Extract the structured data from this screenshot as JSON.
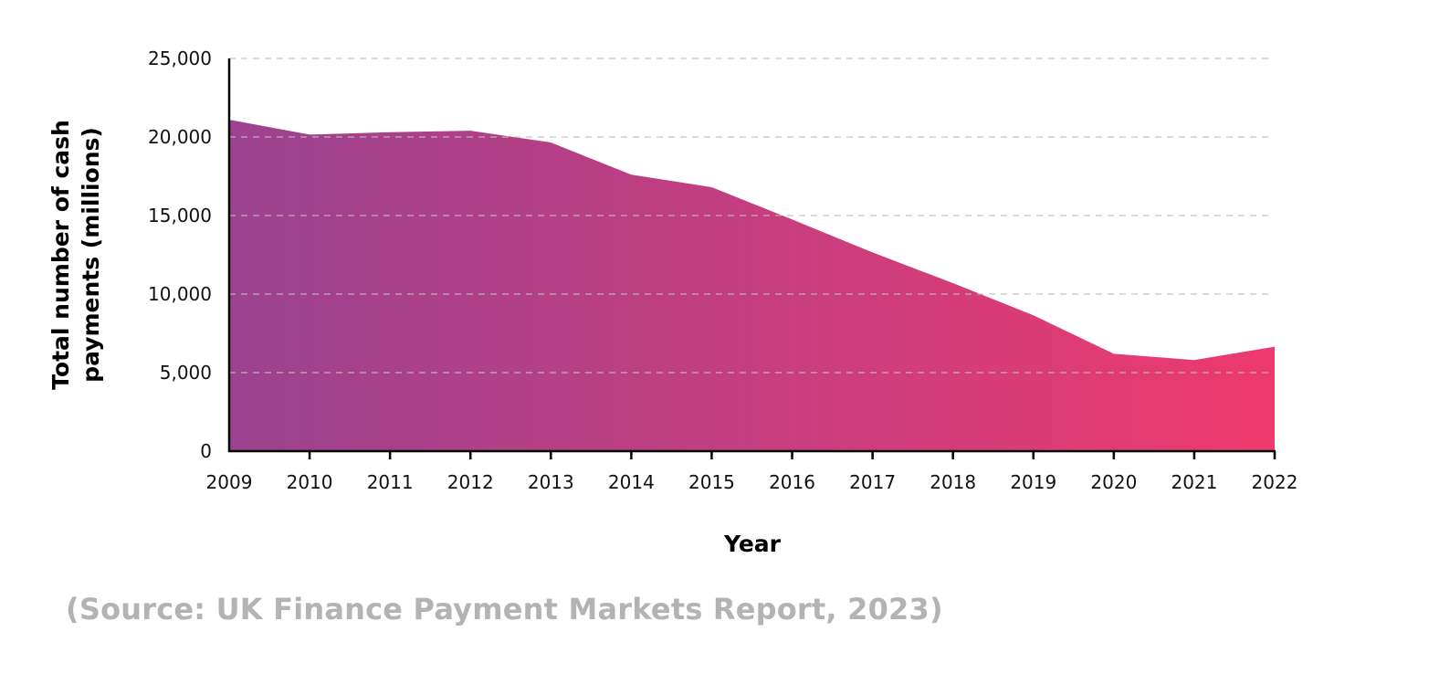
{
  "chart_data": {
    "type": "area",
    "title": "",
    "xlabel": "Year",
    "ylabel": "Total number of cash payments (millions)",
    "ylabel_lines": [
      "Total number of cash",
      "payments (millions)"
    ],
    "categories": [
      "2009",
      "2010",
      "2011",
      "2012",
      "2013",
      "2014",
      "2015",
      "2016",
      "2017",
      "2018",
      "2019",
      "2020",
      "2021",
      "2022"
    ],
    "series": [
      {
        "name": "Total number of cash payments (millions)",
        "values": [
          21100,
          20150,
          20300,
          20400,
          19650,
          17600,
          16800,
          14750,
          12650,
          10700,
          8650,
          6200,
          5800,
          6650
        ]
      }
    ],
    "ylim": [
      0,
      25000
    ],
    "yticks": [
      0,
      5000,
      10000,
      15000,
      20000,
      25000
    ],
    "ytick_labels": [
      "0",
      "5,000",
      "10,000",
      "15,000",
      "20,000",
      "25,000"
    ],
    "grid": "horizontal dashed",
    "legend": "none",
    "fill_gradient": {
      "start": "#9b4290",
      "end": "#ee3a6e"
    },
    "annotations": []
  },
  "source_note": "(Source: UK Finance Payment Markets Report, 2023)",
  "colors": {
    "grid": "#bdbdbd",
    "axis": "#000000",
    "source_text": "#b3b3b3"
  }
}
